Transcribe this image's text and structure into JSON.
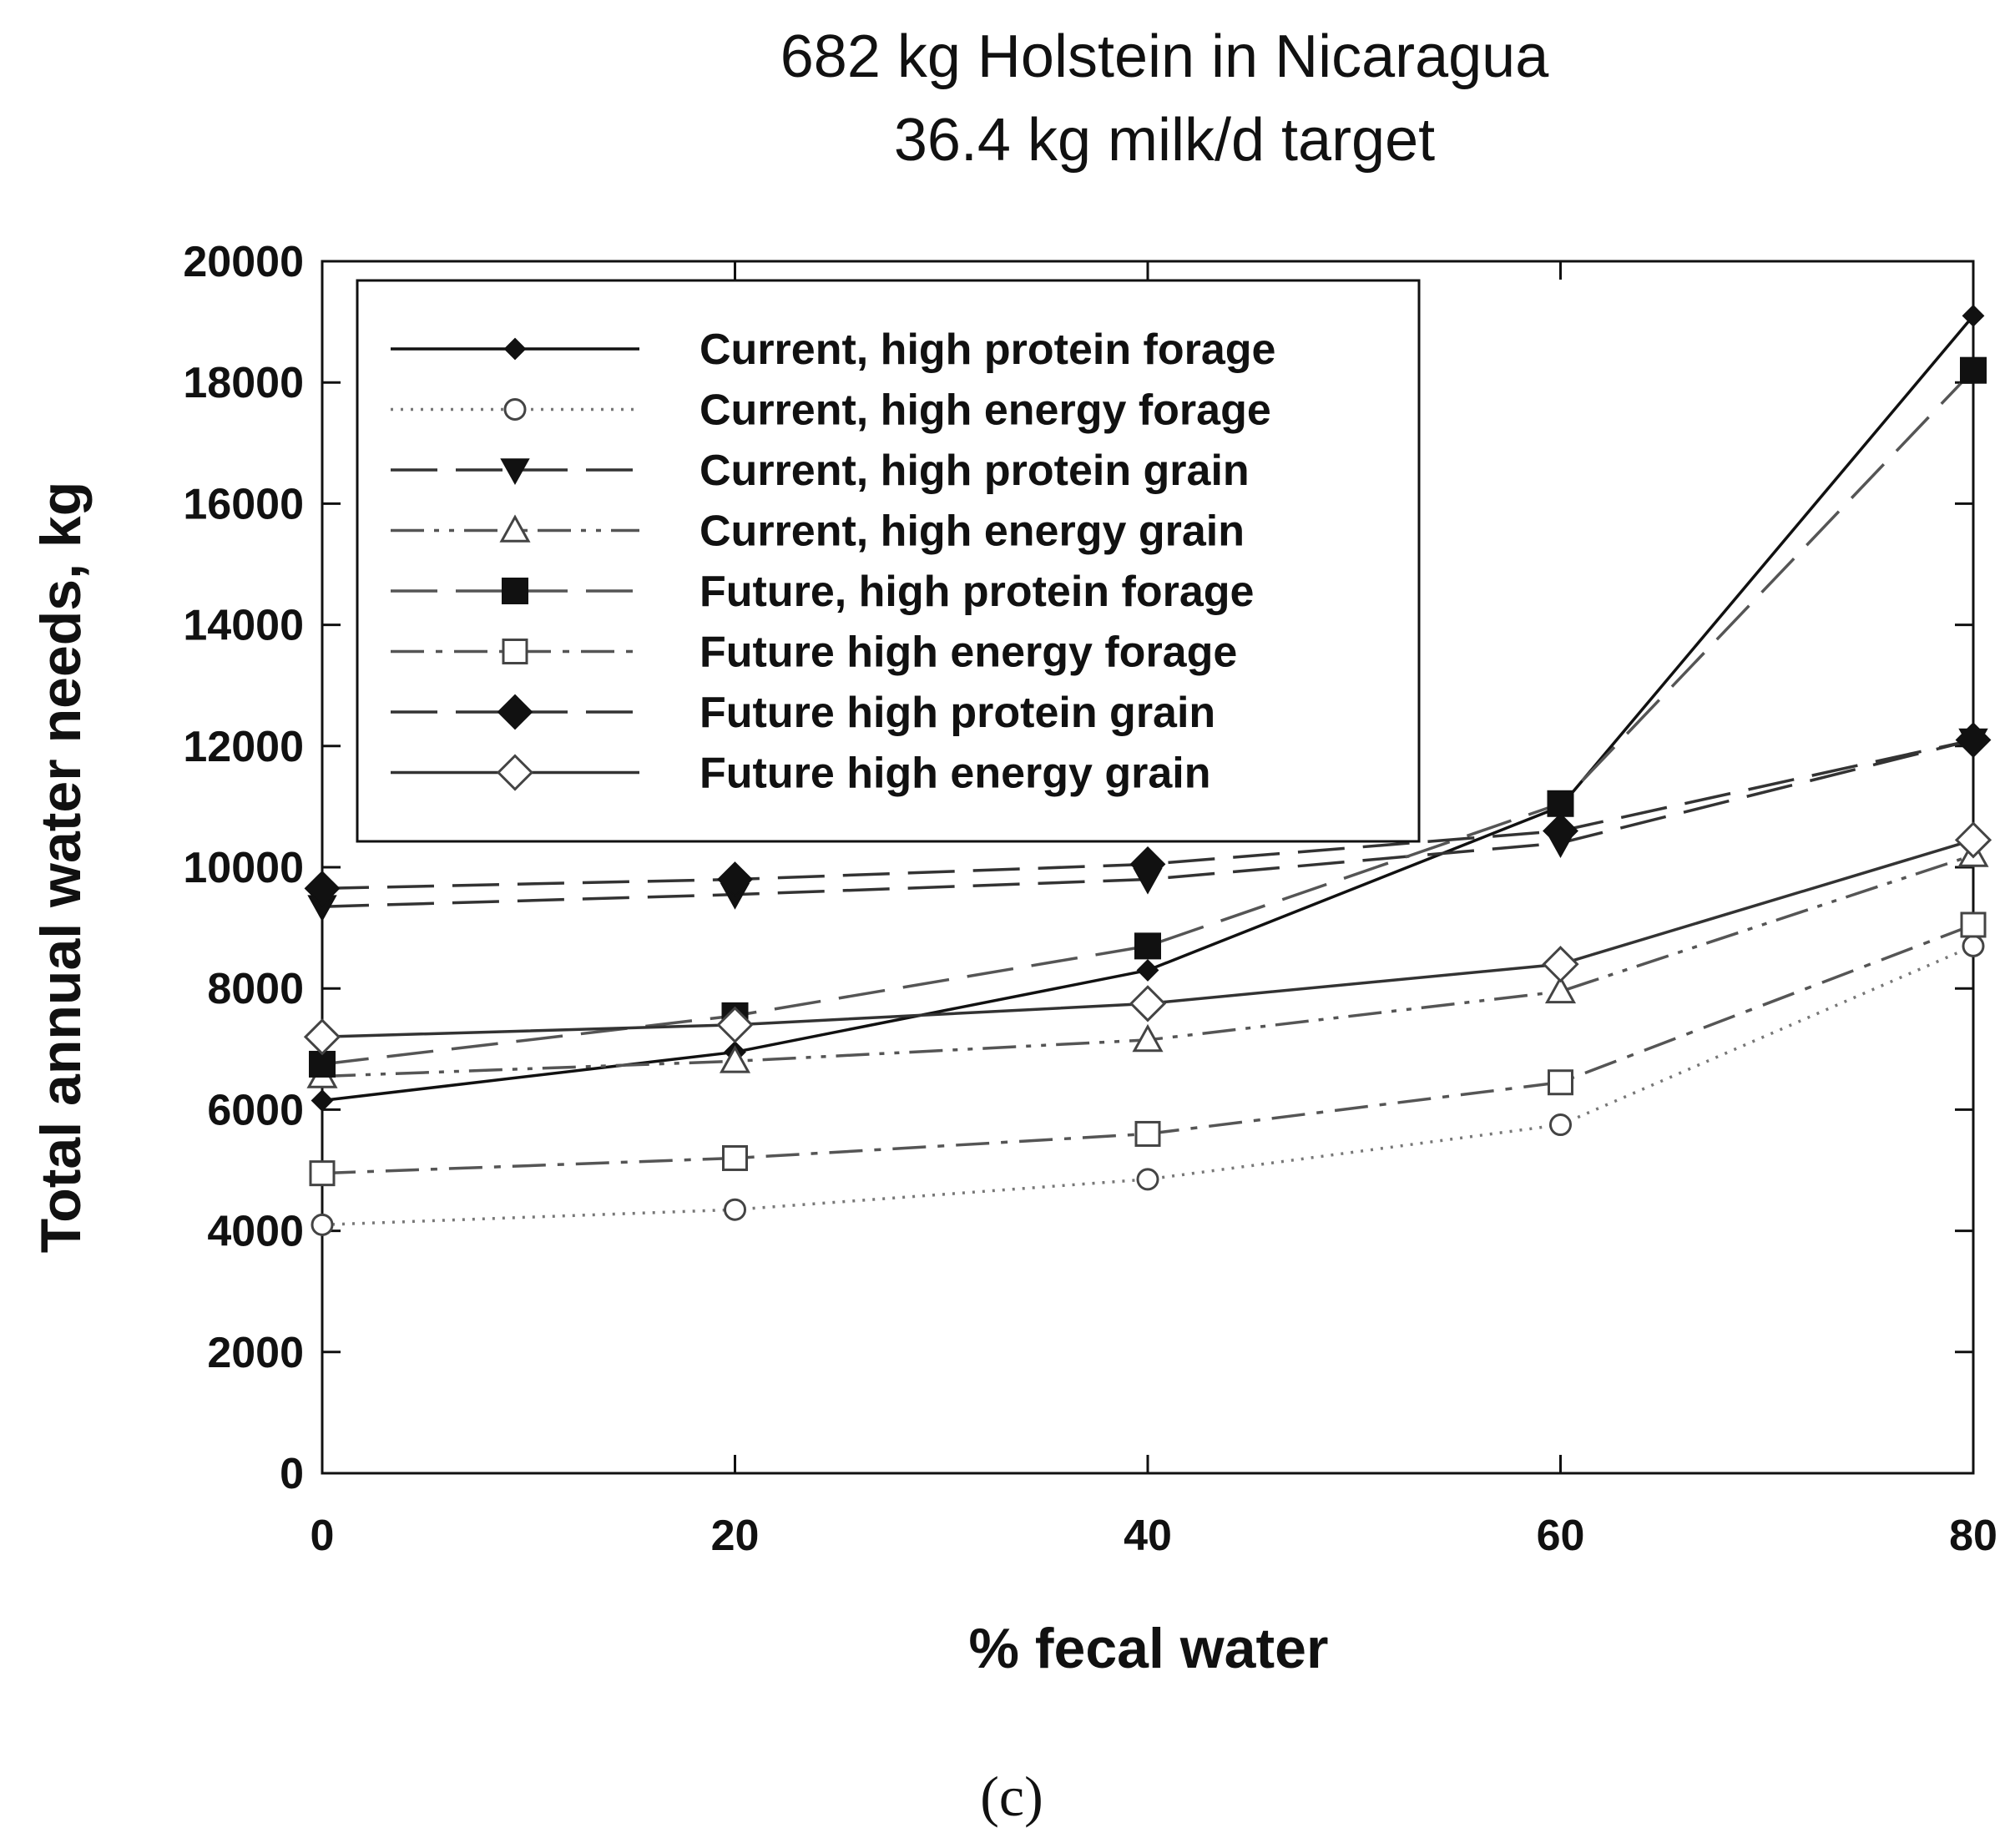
{
  "chart_data": {
    "type": "line",
    "title": "682 kg Holstein in Nicaragua",
    "subtitle": "36.4 kg milk/d target",
    "xlabel": "% fecal water",
    "ylabel": "Total annual water needs, kg",
    "x": [
      0,
      20,
      40,
      60,
      80
    ],
    "xlim": [
      0,
      80
    ],
    "ylim": [
      0,
      20000
    ],
    "xticks": [
      "0",
      "20",
      "40",
      "60",
      "80"
    ],
    "yticks": [
      "0",
      "2000",
      "4000",
      "6000",
      "8000",
      "10000",
      "12000",
      "14000",
      "16000",
      "18000",
      "20000"
    ],
    "grid": false,
    "legend_position": "top-left",
    "panel_label": "(c)",
    "series": [
      {
        "name": "Current, high protein forage",
        "values": [
          6150,
          6950,
          8300,
          11000,
          19100
        ],
        "marker": "diamond-filled-small",
        "dash": "solid",
        "color": "#111111"
      },
      {
        "name": "Current, high energy forage",
        "values": [
          4100,
          4350,
          4850,
          5750,
          8700
        ],
        "marker": "circle-open",
        "dash": "dotted",
        "color": "#777777"
      },
      {
        "name": "Current, high protein grain",
        "values": [
          9350,
          9550,
          9800,
          10400,
          12100
        ],
        "marker": "triangle-down-filled",
        "dash": "longdash",
        "color": "#333333"
      },
      {
        "name": "Current, high energy grain",
        "values": [
          6550,
          6800,
          7150,
          7950,
          10200
        ],
        "marker": "triangle-up-open",
        "dash": "dashdotdot",
        "color": "#555555"
      },
      {
        "name": "Future, high protein forage",
        "values": [
          6750,
          7550,
          8700,
          11050,
          18200
        ],
        "marker": "square-filled",
        "dash": "longdash",
        "color": "#555555"
      },
      {
        "name": "Future high energy forage",
        "values": [
          4950,
          5200,
          5600,
          6450,
          9050
        ],
        "marker": "square-open",
        "dash": "dashdot",
        "color": "#555555"
      },
      {
        "name": "Future high protein grain",
        "values": [
          9650,
          9800,
          10050,
          10600,
          12100
        ],
        "marker": "diamond-filled",
        "dash": "longdash",
        "color": "#333333"
      },
      {
        "name": "Future high energy grain",
        "values": [
          7200,
          7400,
          7750,
          8400,
          10450
        ],
        "marker": "diamond-open",
        "dash": "solid",
        "color": "#333333"
      }
    ]
  }
}
